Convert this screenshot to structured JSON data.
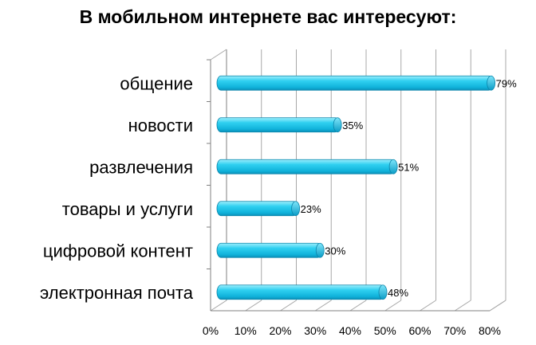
{
  "chart_data": {
    "type": "bar",
    "orientation": "horizontal",
    "title": "В мобильном интернете вас интересуют:",
    "categories": [
      "общение",
      "новости",
      "развлечения",
      "товары и услуги",
      "цифровой контент",
      "электронная почта"
    ],
    "values": [
      79,
      35,
      51,
      23,
      30,
      48
    ],
    "data_labels": [
      "79%",
      "35%",
      "51%",
      "23%",
      "30%",
      "48%"
    ],
    "xlim": [
      0,
      80
    ],
    "xticks": [
      "0%",
      "10%",
      "20%",
      "30%",
      "40%",
      "50%",
      "60%",
      "70%",
      "80%"
    ],
    "grid": true,
    "legend": "none",
    "bar_color": "#1ec8ec"
  }
}
